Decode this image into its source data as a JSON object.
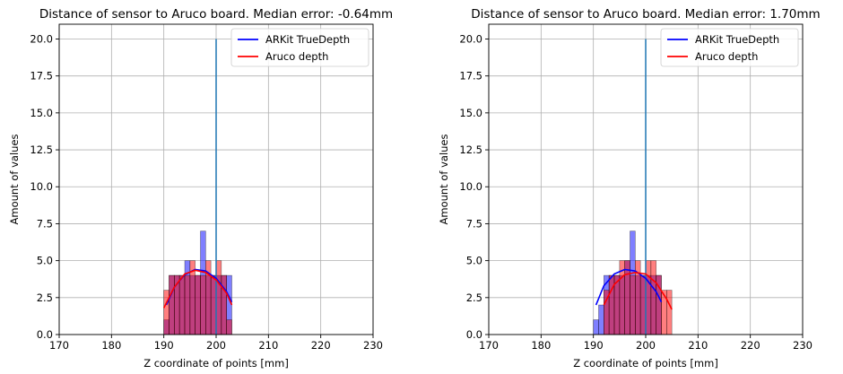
{
  "figure": {
    "background": "#ffffff",
    "colors": {
      "arkit": "#0000ff",
      "aruco": "#ff0000",
      "reference": "#1f77b4",
      "grid": "#b0b0b0"
    }
  },
  "chart_data": [
    {
      "type": "histogram",
      "title": "Distance of sensor to Aruco board. Median error: -0.64mm",
      "xlabel": "Z coordinate of points [mm]",
      "ylabel": "Amount of values",
      "xlim": [
        170,
        230
      ],
      "ylim": [
        0,
        21
      ],
      "xticks": [
        170,
        180,
        190,
        200,
        210,
        220,
        230
      ],
      "yticks": [
        0.0,
        2.5,
        5.0,
        7.5,
        10.0,
        12.5,
        15.0,
        17.5,
        20.0
      ],
      "grid": true,
      "legend": {
        "position": "top-right",
        "entries": [
          {
            "label": "ARKit TrueDepth",
            "color": "#0000ff"
          },
          {
            "label": "Aruco depth",
            "color": "#ff0000"
          }
        ]
      },
      "bin_width": 1,
      "series": [
        {
          "name": "ARKit TrueDepth",
          "color": "#0000ff",
          "bins": [
            {
              "x": 190,
              "count": 1
            },
            {
              "x": 191,
              "count": 4
            },
            {
              "x": 192,
              "count": 4
            },
            {
              "x": 193,
              "count": 4
            },
            {
              "x": 194,
              "count": 5
            },
            {
              "x": 195,
              "count": 4
            },
            {
              "x": 196,
              "count": 4
            },
            {
              "x": 197,
              "count": 7
            },
            {
              "x": 198,
              "count": 4
            },
            {
              "x": 199,
              "count": 4
            },
            {
              "x": 200,
              "count": 4
            },
            {
              "x": 201,
              "count": 4
            },
            {
              "x": 202,
              "count": 4
            }
          ],
          "fit_curve": [
            {
              "x": 190.5,
              "y": 2.0
            },
            {
              "x": 192,
              "y": 3.2
            },
            {
              "x": 194,
              "y": 4.05
            },
            {
              "x": 196,
              "y": 4.4
            },
            {
              "x": 198,
              "y": 4.3
            },
            {
              "x": 200,
              "y": 3.8
            },
            {
              "x": 202,
              "y": 2.9
            },
            {
              "x": 203,
              "y": 2.2
            }
          ]
        },
        {
          "name": "Aruco depth",
          "color": "#ff0000",
          "bins": [
            {
              "x": 190,
              "count": 3
            },
            {
              "x": 191,
              "count": 4
            },
            {
              "x": 192,
              "count": 4
            },
            {
              "x": 193,
              "count": 4
            },
            {
              "x": 194,
              "count": 4
            },
            {
              "x": 195,
              "count": 5
            },
            {
              "x": 196,
              "count": 4
            },
            {
              "x": 197,
              "count": 4
            },
            {
              "x": 198,
              "count": 5
            },
            {
              "x": 199,
              "count": 4
            },
            {
              "x": 200,
              "count": 5
            },
            {
              "x": 201,
              "count": 4
            },
            {
              "x": 202,
              "count": 1
            }
          ],
          "fit_curve": [
            {
              "x": 190,
              "y": 1.8
            },
            {
              "x": 192,
              "y": 3.2
            },
            {
              "x": 194,
              "y": 4.1
            },
            {
              "x": 196,
              "y": 4.35
            },
            {
              "x": 198,
              "y": 4.2
            },
            {
              "x": 200,
              "y": 3.7
            },
            {
              "x": 202,
              "y": 2.8
            },
            {
              "x": 203,
              "y": 2.0
            }
          ]
        }
      ],
      "reference_line": {
        "x": 200,
        "y": 20,
        "color": "#1f77b4"
      }
    },
    {
      "type": "histogram",
      "title": "Distance of sensor to Aruco board. Median error: 1.70mm",
      "xlabel": "Z coordinate of points [mm]",
      "ylabel": "Amount of values",
      "xlim": [
        170,
        230
      ],
      "ylim": [
        0,
        21
      ],
      "xticks": [
        170,
        180,
        190,
        200,
        210,
        220,
        230
      ],
      "yticks": [
        0.0,
        2.5,
        5.0,
        7.5,
        10.0,
        12.5,
        15.0,
        17.5,
        20.0
      ],
      "grid": true,
      "legend": {
        "position": "top-right",
        "entries": [
          {
            "label": "ARKit TrueDepth",
            "color": "#0000ff"
          },
          {
            "label": "Aruco depth",
            "color": "#ff0000"
          }
        ]
      },
      "bin_width": 1,
      "series": [
        {
          "name": "ARKit TrueDepth",
          "color": "#0000ff",
          "bins": [
            {
              "x": 190,
              "count": 1
            },
            {
              "x": 191,
              "count": 2
            },
            {
              "x": 192,
              "count": 4
            },
            {
              "x": 193,
              "count": 4
            },
            {
              "x": 194,
              "count": 4
            },
            {
              "x": 195,
              "count": 4
            },
            {
              "x": 196,
              "count": 5
            },
            {
              "x": 197,
              "count": 7
            },
            {
              "x": 198,
              "count": 4
            },
            {
              "x": 199,
              "count": 4
            },
            {
              "x": 200,
              "count": 4
            },
            {
              "x": 201,
              "count": 4
            },
            {
              "x": 202,
              "count": 4
            }
          ],
          "fit_curve": [
            {
              "x": 190.5,
              "y": 2.0
            },
            {
              "x": 192,
              "y": 3.3
            },
            {
              "x": 194,
              "y": 4.1
            },
            {
              "x": 196,
              "y": 4.4
            },
            {
              "x": 198,
              "y": 4.3
            },
            {
              "x": 200,
              "y": 3.8
            },
            {
              "x": 202,
              "y": 2.9
            },
            {
              "x": 203,
              "y": 2.2
            }
          ]
        },
        {
          "name": "Aruco depth",
          "color": "#ff0000",
          "bins": [
            {
              "x": 192,
              "count": 3
            },
            {
              "x": 193,
              "count": 4
            },
            {
              "x": 194,
              "count": 4
            },
            {
              "x": 195,
              "count": 5
            },
            {
              "x": 196,
              "count": 5
            },
            {
              "x": 197,
              "count": 4
            },
            {
              "x": 198,
              "count": 5
            },
            {
              "x": 199,
              "count": 4
            },
            {
              "x": 200,
              "count": 5
            },
            {
              "x": 201,
              "count": 5
            },
            {
              "x": 202,
              "count": 4
            },
            {
              "x": 203,
              "count": 3
            },
            {
              "x": 204,
              "count": 3
            }
          ],
          "fit_curve": [
            {
              "x": 192,
              "y": 2.0
            },
            {
              "x": 194,
              "y": 3.4
            },
            {
              "x": 196,
              "y": 4.05
            },
            {
              "x": 198,
              "y": 4.2
            },
            {
              "x": 200,
              "y": 4.1
            },
            {
              "x": 202,
              "y": 3.5
            },
            {
              "x": 204,
              "y": 2.4
            },
            {
              "x": 205,
              "y": 1.7
            }
          ]
        }
      ],
      "reference_line": {
        "x": 200,
        "y": 20,
        "color": "#1f77b4"
      }
    }
  ]
}
